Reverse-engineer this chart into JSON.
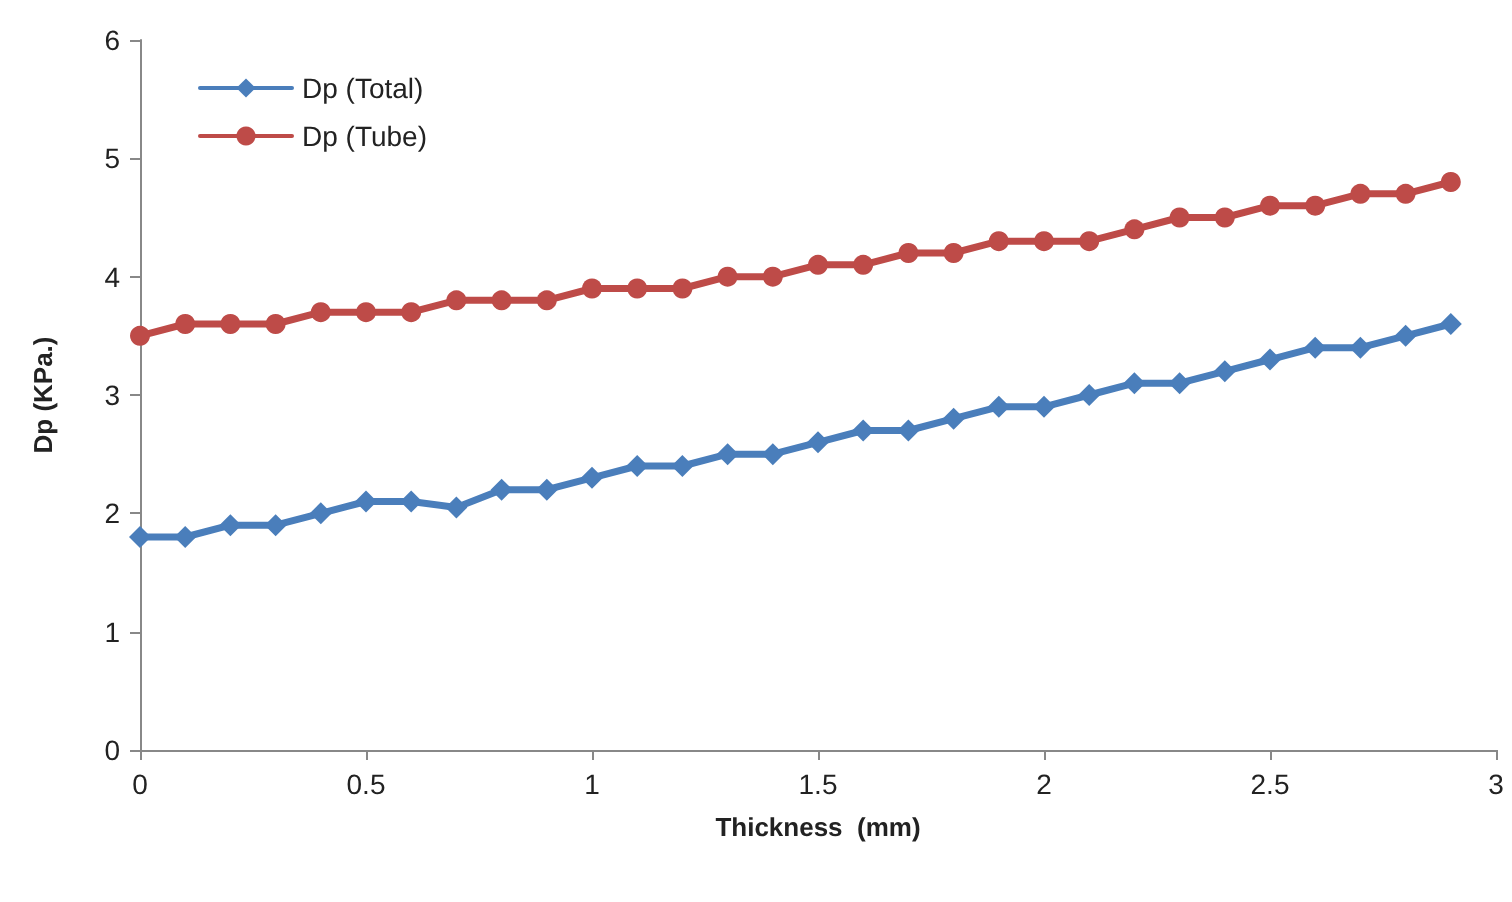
{
  "chart_data": {
    "type": "line",
    "xlabel": "Thickness  (mm)",
    "ylabel": "Dp (KPa.)",
    "x": [
      0,
      0.1,
      0.2,
      0.3,
      0.4,
      0.5,
      0.6,
      0.7,
      0.8,
      0.9,
      1.0,
      1.1,
      1.2,
      1.3,
      1.4,
      1.5,
      1.6,
      1.7,
      1.8,
      1.9,
      2.0,
      2.1,
      2.2,
      2.3,
      2.4,
      2.5,
      2.6,
      2.7,
      2.8,
      2.9
    ],
    "series": [
      {
        "name": "Dp (Total)",
        "color": "#4a7ebb",
        "marker": "diamond",
        "values": [
          1.8,
          1.8,
          1.9,
          1.9,
          2.0,
          2.1,
          2.1,
          2.05,
          2.2,
          2.2,
          2.3,
          2.4,
          2.4,
          2.5,
          2.5,
          2.6,
          2.7,
          2.7,
          2.8,
          2.9,
          2.9,
          3.0,
          3.1,
          3.1,
          3.2,
          3.3,
          3.4,
          3.4,
          3.5,
          3.6
        ]
      },
      {
        "name": "Dp (Tube)",
        "color": "#be4b48",
        "marker": "circle",
        "values": [
          3.5,
          3.6,
          3.6,
          3.6,
          3.7,
          3.7,
          3.7,
          3.8,
          3.8,
          3.8,
          3.9,
          3.9,
          3.9,
          4.0,
          4.0,
          4.1,
          4.1,
          4.2,
          4.2,
          4.3,
          4.3,
          4.3,
          4.4,
          4.5,
          4.5,
          4.6,
          4.6,
          4.7,
          4.7,
          4.8
        ]
      }
    ],
    "xlim": [
      0,
      3
    ],
    "xticks": [
      0,
      0.5,
      1,
      1.5,
      2,
      2.5,
      3
    ],
    "ylim": [
      0,
      6
    ],
    "yticks": [
      0,
      1,
      2,
      3,
      4,
      5,
      6
    ],
    "grid": false,
    "legend": "top left",
    "line_style": "solid"
  }
}
